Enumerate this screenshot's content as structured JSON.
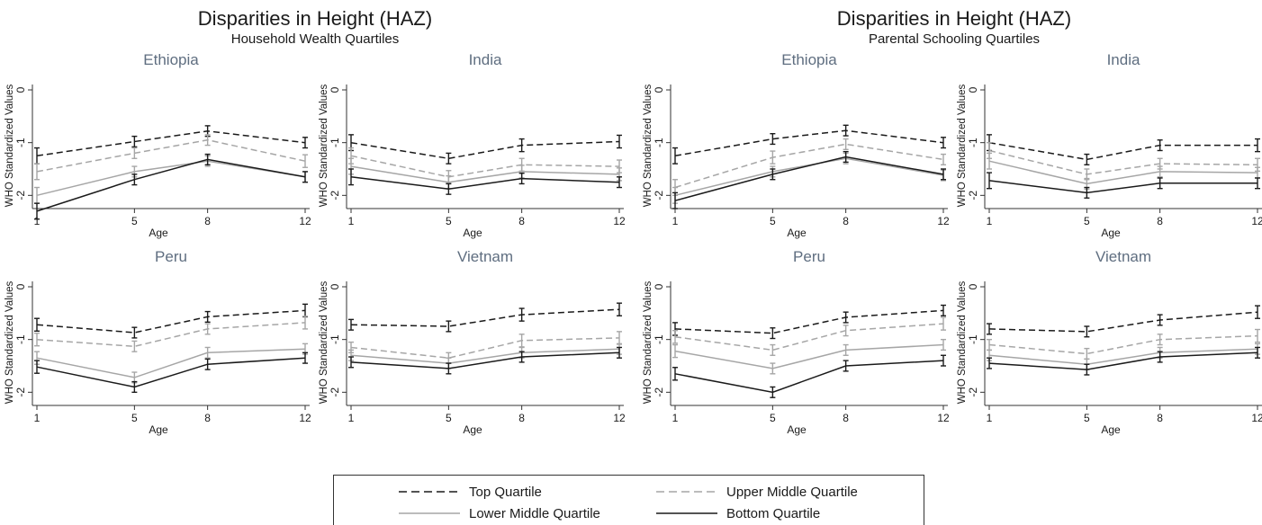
{
  "groups": [
    {
      "title": "Disparities in Height (HAZ)",
      "subtitle": "Household Wealth Quartiles"
    },
    {
      "title": "Disparities in Height (HAZ)",
      "subtitle": "Parental Schooling Quartiles"
    }
  ],
  "legend": [
    {
      "label": "Top Quartile",
      "series": "top"
    },
    {
      "label": "Upper Middle Quartile",
      "series": "upper"
    },
    {
      "label": "Lower Middle Quartile",
      "series": "lower"
    },
    {
      "label": "Bottom Quartile",
      "series": "bottom"
    }
  ],
  "series_styles": {
    "top": {
      "color": "#1a1a1a",
      "dash": true
    },
    "upper": {
      "color": "#a6a6a6",
      "dash": true
    },
    "lower": {
      "color": "#a6a6a6",
      "dash": false
    },
    "bottom": {
      "color": "#1a1a1a",
      "dash": false
    }
  },
  "colors": {
    "panel_title": "#5f6e80",
    "axis": "#333333"
  },
  "chart_data": [
    {
      "type": "line",
      "group": "Household Wealth Quartiles",
      "title": "Ethiopia",
      "xlabel": "Age",
      "ylabel": "WHO Standardized Values",
      "x": [
        1,
        5,
        8,
        12
      ],
      "ylim": [
        -2.25,
        0
      ],
      "yticks": [
        0,
        -1,
        -2
      ],
      "series": [
        {
          "name": "Top Quartile",
          "key": "top",
          "values": [
            -1.25,
            -0.98,
            -0.78,
            -1.0
          ],
          "err": [
            0.15,
            0.1,
            0.1,
            0.1
          ]
        },
        {
          "name": "Upper Middle Quartile",
          "key": "upper",
          "values": [
            -1.55,
            -1.2,
            -0.95,
            -1.35
          ],
          "err": [
            0.15,
            0.1,
            0.1,
            0.12
          ]
        },
        {
          "name": "Lower Middle Quartile",
          "key": "lower",
          "values": [
            -2.0,
            -1.55,
            -1.35,
            -1.65
          ],
          "err": [
            0.15,
            0.1,
            0.1,
            0.1
          ]
        },
        {
          "name": "Bottom Quartile",
          "key": "bottom",
          "values": [
            -2.3,
            -1.7,
            -1.32,
            -1.65
          ],
          "err": [
            0.15,
            0.1,
            0.1,
            0.1
          ]
        }
      ]
    },
    {
      "type": "line",
      "group": "Household Wealth Quartiles",
      "title": "India",
      "xlabel": "Age",
      "ylabel": "WHO Standardized Values",
      "x": [
        1,
        5,
        8,
        12
      ],
      "ylim": [
        -2.25,
        0
      ],
      "yticks": [
        0,
        -1,
        -2
      ],
      "series": [
        {
          "name": "Top Quartile",
          "key": "top",
          "values": [
            -1.0,
            -1.3,
            -1.05,
            -0.98
          ],
          "err": [
            0.15,
            0.1,
            0.12,
            0.12
          ]
        },
        {
          "name": "Upper Middle Quartile",
          "key": "upper",
          "values": [
            -1.25,
            -1.65,
            -1.42,
            -1.45
          ],
          "err": [
            0.15,
            0.12,
            0.12,
            0.12
          ]
        },
        {
          "name": "Lower Middle Quartile",
          "key": "lower",
          "values": [
            -1.45,
            -1.75,
            -1.55,
            -1.6
          ],
          "err": [
            0.15,
            0.12,
            0.12,
            0.12
          ]
        },
        {
          "name": "Bottom Quartile",
          "key": "bottom",
          "values": [
            -1.65,
            -1.88,
            -1.68,
            -1.75
          ],
          "err": [
            0.15,
            0.1,
            0.1,
            0.1
          ]
        }
      ]
    },
    {
      "type": "line",
      "group": "Household Wealth Quartiles",
      "title": "Peru",
      "xlabel": "Age",
      "ylabel": "WHO Standardized Values",
      "x": [
        1,
        5,
        8,
        12
      ],
      "ylim": [
        -2.25,
        0
      ],
      "yticks": [
        0,
        -1,
        -2
      ],
      "series": [
        {
          "name": "Top Quartile",
          "key": "top",
          "values": [
            -0.72,
            -0.87,
            -0.57,
            -0.45
          ],
          "err": [
            0.12,
            0.1,
            0.1,
            0.12
          ]
        },
        {
          "name": "Upper Middle Quartile",
          "key": "upper",
          "values": [
            -1.0,
            -1.13,
            -0.8,
            -0.68
          ],
          "err": [
            0.12,
            0.1,
            0.1,
            0.12
          ]
        },
        {
          "name": "Lower Middle Quartile",
          "key": "lower",
          "values": [
            -1.35,
            -1.72,
            -1.25,
            -1.18
          ],
          "err": [
            0.12,
            0.1,
            0.1,
            0.1
          ]
        },
        {
          "name": "Bottom Quartile",
          "key": "bottom",
          "values": [
            -1.52,
            -1.9,
            -1.47,
            -1.35
          ],
          "err": [
            0.12,
            0.1,
            0.1,
            0.1
          ]
        }
      ]
    },
    {
      "type": "line",
      "group": "Household Wealth Quartiles",
      "title": "Vietnam",
      "xlabel": "Age",
      "ylabel": "WHO Standardized Values",
      "x": [
        1,
        5,
        8,
        12
      ],
      "ylim": [
        -2.25,
        0
      ],
      "yticks": [
        0,
        -1,
        -2
      ],
      "series": [
        {
          "name": "Top Quartile",
          "key": "top",
          "values": [
            -0.72,
            -0.75,
            -0.53,
            -0.43
          ],
          "err": [
            0.1,
            0.1,
            0.12,
            0.12
          ]
        },
        {
          "name": "Upper Middle Quartile",
          "key": "upper",
          "values": [
            -1.15,
            -1.35,
            -1.02,
            -0.97
          ],
          "err": [
            0.1,
            0.1,
            0.12,
            0.12
          ]
        },
        {
          "name": "Lower Middle Quartile",
          "key": "lower",
          "values": [
            -1.3,
            -1.45,
            -1.25,
            -1.18
          ],
          "err": [
            0.1,
            0.1,
            0.1,
            0.1
          ]
        },
        {
          "name": "Bottom Quartile",
          "key": "bottom",
          "values": [
            -1.43,
            -1.55,
            -1.33,
            -1.25
          ],
          "err": [
            0.1,
            0.1,
            0.1,
            0.1
          ]
        }
      ]
    },
    {
      "type": "line",
      "group": "Parental Schooling Quartiles",
      "title": "Ethiopia",
      "xlabel": "Age",
      "ylabel": "WHO Standardized Values",
      "x": [
        1,
        5,
        8,
        12
      ],
      "ylim": [
        -2.25,
        0
      ],
      "yticks": [
        0,
        -1,
        -2
      ],
      "series": [
        {
          "name": "Top Quartile",
          "key": "top",
          "values": [
            -1.25,
            -0.93,
            -0.77,
            -1.0
          ],
          "err": [
            0.15,
            0.1,
            0.1,
            0.1
          ]
        },
        {
          "name": "Upper Middle Quartile",
          "key": "upper",
          "values": [
            -1.85,
            -1.28,
            -1.03,
            -1.32
          ],
          "err": [
            0.15,
            0.12,
            0.1,
            0.1
          ]
        },
        {
          "name": "Lower Middle Quartile",
          "key": "lower",
          "values": [
            -2.0,
            -1.55,
            -1.3,
            -1.62
          ],
          "err": [
            0.15,
            0.1,
            0.1,
            0.1
          ]
        },
        {
          "name": "Bottom Quartile",
          "key": "bottom",
          "values": [
            -2.1,
            -1.6,
            -1.27,
            -1.6
          ],
          "err": [
            0.15,
            0.1,
            0.1,
            0.1
          ]
        }
      ]
    },
    {
      "type": "line",
      "group": "Parental Schooling Quartiles",
      "title": "India",
      "xlabel": "Age",
      "ylabel": "WHO Standardized Values",
      "x": [
        1,
        5,
        8,
        12
      ],
      "ylim": [
        -2.25,
        0
      ],
      "yticks": [
        0,
        -1,
        -2
      ],
      "series": [
        {
          "name": "Top Quartile",
          "key": "top",
          "values": [
            -1.0,
            -1.32,
            -1.05,
            -1.05
          ],
          "err": [
            0.15,
            0.1,
            0.1,
            0.12
          ]
        },
        {
          "name": "Upper Middle Quartile",
          "key": "upper",
          "values": [
            -1.15,
            -1.6,
            -1.4,
            -1.42
          ],
          "err": [
            0.15,
            0.1,
            0.1,
            0.12
          ]
        },
        {
          "name": "Lower Middle Quartile",
          "key": "lower",
          "values": [
            -1.35,
            -1.78,
            -1.55,
            -1.57
          ],
          "err": [
            0.15,
            0.1,
            0.1,
            0.1
          ]
        },
        {
          "name": "Bottom Quartile",
          "key": "bottom",
          "values": [
            -1.72,
            -1.95,
            -1.77,
            -1.77
          ],
          "err": [
            0.15,
            0.1,
            0.1,
            0.1
          ]
        }
      ]
    },
    {
      "type": "line",
      "group": "Parental Schooling Quartiles",
      "title": "Peru",
      "xlabel": "Age",
      "ylabel": "WHO Standardized Values",
      "x": [
        1,
        5,
        8,
        12
      ],
      "ylim": [
        -2.25,
        0
      ],
      "yticks": [
        0,
        -1,
        -2
      ],
      "series": [
        {
          "name": "Top Quartile",
          "key": "top",
          "values": [
            -0.8,
            -0.88,
            -0.58,
            -0.45
          ],
          "err": [
            0.12,
            0.1,
            0.1,
            0.1
          ]
        },
        {
          "name": "Upper Middle Quartile",
          "key": "upper",
          "values": [
            -0.95,
            -1.2,
            -0.83,
            -0.7
          ],
          "err": [
            0.12,
            0.1,
            0.1,
            0.12
          ]
        },
        {
          "name": "Lower Middle Quartile",
          "key": "lower",
          "values": [
            -1.22,
            -1.55,
            -1.2,
            -1.1
          ],
          "err": [
            0.12,
            0.1,
            0.1,
            0.1
          ]
        },
        {
          "name": "Bottom Quartile",
          "key": "bottom",
          "values": [
            -1.65,
            -2.0,
            -1.5,
            -1.4
          ],
          "err": [
            0.12,
            0.1,
            0.1,
            0.1
          ]
        }
      ]
    },
    {
      "type": "line",
      "group": "Parental Schooling Quartiles",
      "title": "Vietnam",
      "xlabel": "Age",
      "ylabel": "WHO Standardized Values",
      "x": [
        1,
        5,
        8,
        12
      ],
      "ylim": [
        -2.25,
        0
      ],
      "yticks": [
        0,
        -1,
        -2
      ],
      "series": [
        {
          "name": "Top Quartile",
          "key": "top",
          "values": [
            -0.8,
            -0.85,
            -0.63,
            -0.48
          ],
          "err": [
            0.1,
            0.1,
            0.1,
            0.12
          ]
        },
        {
          "name": "Upper Middle Quartile",
          "key": "upper",
          "values": [
            -1.1,
            -1.27,
            -1.0,
            -0.93
          ],
          "err": [
            0.1,
            0.1,
            0.1,
            0.12
          ]
        },
        {
          "name": "Lower Middle Quartile",
          "key": "lower",
          "values": [
            -1.3,
            -1.47,
            -1.25,
            -1.18
          ],
          "err": [
            0.1,
            0.1,
            0.1,
            0.1
          ]
        },
        {
          "name": "Bottom Quartile",
          "key": "bottom",
          "values": [
            -1.45,
            -1.57,
            -1.33,
            -1.25
          ],
          "err": [
            0.1,
            0.1,
            0.1,
            0.1
          ]
        }
      ]
    }
  ]
}
